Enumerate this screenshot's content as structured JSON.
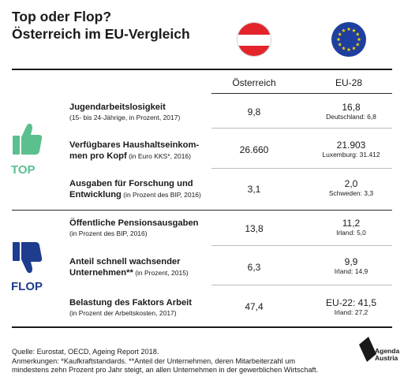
{
  "title": {
    "line1": "Top oder Flop?",
    "line2": "Österreich im EU-Vergleich"
  },
  "columns": {
    "austria": "Österreich",
    "eu": "EU-28"
  },
  "labels": {
    "top": "TOP",
    "flop": "FLOP"
  },
  "rows": [
    {
      "title": "Jugendarbeitslosigkeit",
      "title_suffix": "",
      "title2": "",
      "title2_suffix": "",
      "note": "(15- bis 24-Jährige, in Prozent, 2017)",
      "at": "9,8",
      "eu": "16,8",
      "eu_cmp": "Deutschland: 6,8"
    },
    {
      "title": "Verfügbares Haushaltseinkom-",
      "title_suffix": "",
      "title2": "men pro Kopf",
      "title2_suffix": " (in Euro KKS*, 2016)",
      "note": "",
      "at": "26.660",
      "eu": "21.903",
      "eu_cmp": "Luxemburg: 31.412"
    },
    {
      "title": "Ausgaben für Forschung und",
      "title_suffix": "",
      "title2": "Entwicklung",
      "title2_suffix": " (in Prozent des BIP, 2016)",
      "note": "",
      "at": "3,1",
      "eu": "2,0",
      "eu_cmp": "Schweden: 3,3"
    },
    {
      "title": "Öffentliche Pensionsausgaben",
      "title_suffix": "",
      "title2": "",
      "title2_suffix": "",
      "note": "(in Prozent des BIP, 2016)",
      "at": "13,8",
      "eu": "11,2",
      "eu_cmp": "Irland: 5,0"
    },
    {
      "title": "Anteil schnell wachsender",
      "title_suffix": "",
      "title2": "Unternehmen**",
      "title2_suffix": " (in Prozent, 2015)",
      "note": "",
      "at": "6,3",
      "eu": "9,9",
      "eu_cmp": "Irland: 14,9"
    },
    {
      "title": "Belastung des Faktors Arbeit",
      "title_suffix": "",
      "title2": "",
      "title2_suffix": "",
      "note": "(in Prozent der Arbeitskosten, 2017)",
      "at": "47,4",
      "eu": "EU-22: 41,5",
      "eu_cmp": "Irland: 27,2"
    }
  ],
  "footer": {
    "line1": "Quelle: Eurostat, OECD, Ageing Report 2018.",
    "line2": "Anmerkungen:  *Kaufkraftstandards. **Anteil der Unternehmen, deren Mitarbeiterzahl um",
    "line3": "mindestens zehn Prozent pro Jahr steigt, an allen Unternehmen in der gewerblichen Wirtschaft."
  },
  "logo": {
    "line1": "Agenda",
    "line2": "Austria"
  },
  "colors": {
    "top": "#5bbf8e",
    "flop": "#1e3d8f",
    "eu_flag": "#1f3f9e",
    "eu_stars": "#f5d300",
    "at_red": "#e3242b"
  },
  "icons": {
    "top": "thumbs-up-icon",
    "flop": "thumbs-down-icon",
    "austria": "austria-flag-icon",
    "eu": "eu-flag-icon",
    "logo": "agenda-austria-logo-icon"
  }
}
